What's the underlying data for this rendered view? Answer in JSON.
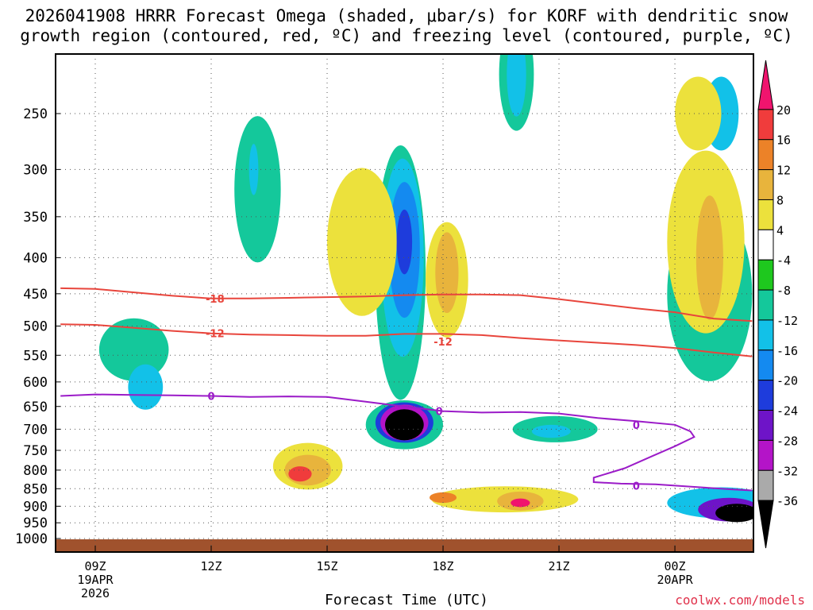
{
  "title": {
    "line1": "2026041908 HRRR Forecast Omega (shaded, μbar/s) for KORF with dendritic snow",
    "line2": "growth region (contoured, red, ºC) and freezing level (contoured, purple, ºC)"
  },
  "credit": "coolwx.com/models",
  "chart_data": {
    "type": "heatmap",
    "title": "2026041908 HRRR Forecast Omega (shaded, μbar/s) for KORF with dendritic snow growth region (contoured, red, ºC) and freezing level (contoured, purple, ºC)",
    "xlabel": "Forecast Time (UTC)",
    "ylabel": "",
    "x_ticks": [
      {
        "hour": 9,
        "label": "09Z",
        "sub1": "19APR",
        "sub2": "2026"
      },
      {
        "hour": 12,
        "label": "12Z"
      },
      {
        "hour": 15,
        "label": "15Z"
      },
      {
        "hour": 18,
        "label": "18Z"
      },
      {
        "hour": 21,
        "label": "21Z"
      },
      {
        "hour": 24,
        "label": "00Z",
        "sub1": "20APR"
      }
    ],
    "xlim": [
      8.1,
      26.0
    ],
    "y_ticks": [
      250,
      300,
      350,
      400,
      450,
      500,
      550,
      600,
      650,
      700,
      750,
      800,
      850,
      900,
      950,
      1000
    ],
    "ylim_hPa": [
      200,
      1020
    ],
    "colorbar": {
      "labels": [
        "20",
        "16",
        "12",
        "8",
        "4",
        "-4",
        "-8",
        "-12",
        "-16",
        "-20",
        "-24",
        "-28",
        "-32",
        "-36"
      ],
      "colors": [
        "#f0146e",
        "#f03c3c",
        "#ec8228",
        "#e8b43c",
        "#ece13c",
        "#ffffff",
        "#1ec81e",
        "#14c89b",
        "#12c1e8",
        "#148af0",
        "#1e3cdc",
        "#6e14c8",
        "#b414c8",
        "#aaaaaa",
        "#000000"
      ]
    },
    "contours": {
      "dendritic_red": [
        {
          "label": "-18",
          "label_hour": 12.1,
          "points": [
            [
              8.1,
              442
            ],
            [
              9,
              443
            ],
            [
              10,
              448
            ],
            [
              11,
              453
            ],
            [
              12,
              457
            ],
            [
              13,
              457
            ],
            [
              14,
              456
            ],
            [
              15,
              455
            ],
            [
              16,
              454
            ],
            [
              17,
              452
            ],
            [
              18,
              451
            ],
            [
              19,
              451
            ],
            [
              20,
              452
            ],
            [
              21,
              458
            ],
            [
              22,
              465
            ],
            [
              23,
              472
            ],
            [
              24,
              478
            ],
            [
              25,
              488
            ],
            [
              26,
              492
            ]
          ]
        },
        {
          "label": "-12",
          "label_hour": 12.1,
          "points": [
            [
              8.1,
              497
            ],
            [
              9,
              498
            ],
            [
              10,
              503
            ],
            [
              11,
              508
            ],
            [
              12,
              512
            ],
            [
              13,
              514
            ],
            [
              14,
              515
            ],
            [
              15,
              516
            ],
            [
              16,
              516
            ],
            [
              17,
              513
            ],
            [
              18,
              513
            ],
            [
              19,
              515
            ],
            [
              20,
              520
            ],
            [
              21,
              524
            ],
            [
              22,
              528
            ],
            [
              23,
              532
            ],
            [
              24,
              537
            ],
            [
              25,
              545
            ],
            [
              26,
              552
            ]
          ]
        },
        {
          "label": "-12",
          "label_hour": 18.0,
          "points": []
        }
      ],
      "freezing_purple": [
        {
          "label": "0",
          "label_hour": 12.0,
          "points": [
            [
              8.1,
              628
            ],
            [
              9,
              625
            ],
            [
              10,
              626
            ],
            [
              11,
              627
            ],
            [
              12,
              628
            ],
            [
              13,
              630
            ],
            [
              14,
              629
            ],
            [
              15,
              630
            ],
            [
              16,
              640
            ],
            [
              17,
              650
            ],
            [
              18,
              660
            ],
            [
              19,
              663
            ],
            [
              20,
              662
            ],
            [
              21,
              665
            ],
            [
              22,
              675
            ],
            [
              23,
              682
            ],
            [
              24,
              690
            ],
            [
              24.4,
              705
            ],
            [
              24.5,
              718
            ],
            [
              24.0,
              740
            ],
            [
              23.4,
              765
            ],
            [
              22.7,
              795
            ],
            [
              21.9,
              820
            ],
            [
              21.9,
              832
            ],
            [
              22.6,
              836
            ],
            [
              23.5,
              838
            ],
            [
              24.5,
              845
            ],
            [
              25.5,
              852
            ],
            [
              26.0,
              855
            ]
          ]
        },
        {
          "label": "0",
          "label_hour": 17.9,
          "points": []
        },
        {
          "label": "0",
          "label_hour": 23.0,
          "points": []
        },
        {
          "label": "0",
          "label_hour": 23.0,
          "points": []
        }
      ]
    },
    "omega_features": [
      {
        "level": "-8",
        "center": [
          10.0,
          540
        ],
        "extent": [
          0.9,
          110
        ]
      },
      {
        "level": "-12",
        "center": [
          10.3,
          610
        ],
        "extent": [
          0.45,
          90
        ]
      },
      {
        "level": "-8",
        "center": [
          13.2,
          320
        ],
        "extent": [
          0.6,
          150
        ]
      },
      {
        "level": "-12",
        "center": [
          13.1,
          300
        ],
        "extent": [
          0.12,
          50
        ]
      },
      {
        "level": "-8",
        "center": [
          16.9,
          420
        ],
        "extent": [
          0.65,
          330
        ]
      },
      {
        "level": "-12",
        "center": [
          16.95,
          400
        ],
        "extent": [
          0.55,
          250
        ]
      },
      {
        "level": "-16",
        "center": [
          17.0,
          390
        ],
        "extent": [
          0.4,
          170
        ]
      },
      {
        "level": "-20",
        "center": [
          17.0,
          380
        ],
        "extent": [
          0.2,
          80
        ]
      },
      {
        "level": "-8",
        "center": [
          17.0,
          690
        ],
        "extent": [
          1.0,
          110
        ]
      },
      {
        "level": "-20",
        "center": [
          17.0,
          685
        ],
        "extent": [
          0.75,
          90
        ]
      },
      {
        "level": "-28",
        "center": [
          17.0,
          685
        ],
        "extent": [
          0.62,
          80
        ]
      },
      {
        "level": "-36",
        "center": [
          17.0,
          690
        ],
        "extent": [
          0.5,
          70
        ]
      },
      {
        "level": "-8",
        "center": [
          20.9,
          700
        ],
        "extent": [
          1.1,
          60
        ]
      },
      {
        "level": "-12",
        "center": [
          20.8,
          705
        ],
        "extent": [
          0.5,
          30
        ]
      },
      {
        "level": "-8",
        "center": [
          19.9,
          220
        ],
        "extent": [
          0.45,
          80
        ]
      },
      {
        "level": "-12",
        "center": [
          19.9,
          220
        ],
        "extent": [
          0.25,
          60
        ]
      },
      {
        "level": "-8",
        "center": [
          24.9,
          450
        ],
        "extent": [
          1.1,
          250
        ]
      },
      {
        "level": "-12",
        "center": [
          25.2,
          250
        ],
        "extent": [
          0.45,
          60
        ]
      },
      {
        "level": "-12",
        "center": [
          25.2,
          890
        ],
        "extent": [
          1.4,
          90
        ]
      },
      {
        "level": "-24",
        "center": [
          25.4,
          910
        ],
        "extent": [
          0.8,
          70
        ]
      },
      {
        "level": "-36",
        "center": [
          25.6,
          920
        ],
        "extent": [
          0.55,
          55
        ]
      },
      {
        "level": "4",
        "center": [
          15.9,
          380
        ],
        "extent": [
          0.9,
          180
        ]
      },
      {
        "level": "4",
        "center": [
          18.1,
          430
        ],
        "extent": [
          0.55,
          160
        ]
      },
      {
        "level": "8",
        "center": [
          18.1,
          420
        ],
        "extent": [
          0.3,
          110
        ]
      },
      {
        "level": "4",
        "center": [
          24.8,
          380
        ],
        "extent": [
          1.0,
          220
        ]
      },
      {
        "level": "8",
        "center": [
          24.9,
          400
        ],
        "extent": [
          0.35,
          160
        ]
      },
      {
        "level": "4",
        "center": [
          24.6,
          250
        ],
        "extent": [
          0.6,
          60
        ]
      },
      {
        "level": "4",
        "center": [
          14.5,
          790
        ],
        "extent": [
          0.9,
          120
        ]
      },
      {
        "level": "8",
        "center": [
          14.5,
          800
        ],
        "extent": [
          0.6,
          80
        ]
      },
      {
        "level": "16",
        "center": [
          14.3,
          810
        ],
        "extent": [
          0.3,
          40
        ]
      },
      {
        "level": "4",
        "center": [
          19.6,
          880
        ],
        "extent": [
          1.9,
          75
        ]
      },
      {
        "level": "8",
        "center": [
          20.0,
          885
        ],
        "extent": [
          0.6,
          55
        ]
      },
      {
        "level": "20",
        "center": [
          20.0,
          890
        ],
        "extent": [
          0.25,
          25
        ]
      },
      {
        "level": "12",
        "center": [
          18.0,
          875
        ],
        "extent": [
          0.35,
          30
        ]
      }
    ],
    "terrain": {
      "color": "#a0522d",
      "top_hPa": 1000
    }
  }
}
